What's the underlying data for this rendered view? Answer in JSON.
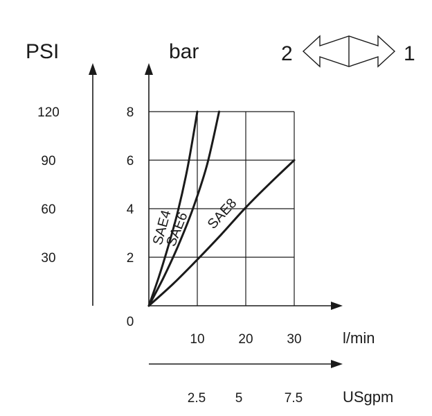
{
  "chart_data": {
    "type": "line",
    "title": "",
    "units": {
      "psi_axis": "PSI",
      "bar_axis": "bar",
      "flow_lmin": "l/min",
      "flow_usgpm": "USgpm"
    },
    "y_bar_ticks": [
      "0",
      "2",
      "4",
      "6",
      "8"
    ],
    "y_bar_values": [
      0,
      2,
      4,
      6,
      8
    ],
    "y_psi_ticks": [
      "30",
      "60",
      "90",
      "120"
    ],
    "y_psi_positions_bar": [
      2,
      4,
      6,
      8
    ],
    "x_lmin_ticks": [
      "10",
      "20",
      "30"
    ],
    "x_lmin_values": [
      10,
      20,
      30
    ],
    "x_usgpm_ticks": [
      "2.5",
      "5",
      "7.5"
    ],
    "x_usgpm_positions_lmin": [
      10,
      20,
      30
    ],
    "xlim": [
      0,
      30
    ],
    "ylim": [
      0,
      8
    ],
    "grid": true,
    "series": [
      {
        "name": "SAE4",
        "points": [
          [
            0,
            0
          ],
          [
            2,
            1.15
          ],
          [
            4,
            2.45
          ],
          [
            6,
            3.9
          ],
          [
            8,
            5.7
          ],
          [
            10,
            8.0
          ]
        ]
      },
      {
        "name": "SAE6",
        "points": [
          [
            0,
            0
          ],
          [
            3,
            1.15
          ],
          [
            6,
            2.45
          ],
          [
            9,
            3.95
          ],
          [
            12,
            5.8
          ],
          [
            14.5,
            8.0
          ]
        ]
      },
      {
        "name": "SAE8",
        "points": [
          [
            0,
            0
          ],
          [
            5,
            0.9
          ],
          [
            10,
            1.9
          ],
          [
            15,
            2.95
          ],
          [
            20,
            4.05
          ],
          [
            25,
            5.05
          ],
          [
            30,
            6.0
          ]
        ]
      }
    ],
    "flow_direction": {
      "left_label": "2",
      "right_label": "1"
    }
  }
}
